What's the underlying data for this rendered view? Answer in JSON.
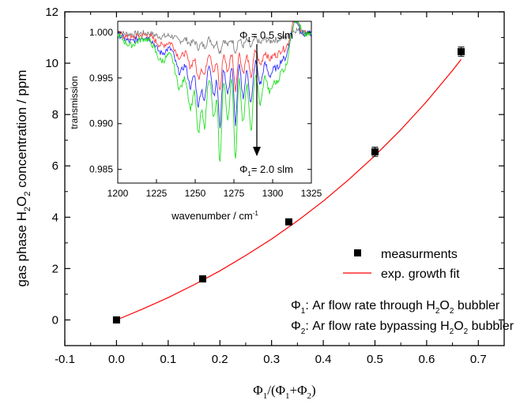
{
  "chart_data": [
    {
      "type": "scatter",
      "xlabel": {
        "main": "Φ",
        "sub1": "1",
        "mid": "/(Φ",
        "sub2": "1",
        "plus": "+Φ",
        "sub3": "2",
        "end": ")"
      },
      "ylabel": {
        "pre": "gas phase H",
        "sub1": "2",
        "mid": "O",
        "sub2": "2",
        "post": " concentration / ppm"
      },
      "xlim": [
        -0.1,
        0.75
      ],
      "ylim": [
        -1,
        12
      ],
      "xticks": [
        "-0.1",
        "0.0",
        "0.1",
        "0.2",
        "0.3",
        "0.4",
        "0.5",
        "0.6",
        "0.7"
      ],
      "xtick_values": [
        -0.1,
        0.0,
        0.1,
        0.2,
        0.3,
        0.4,
        0.5,
        0.6,
        0.7
      ],
      "yticks": [
        "0",
        "2",
        "4",
        "6",
        "8",
        "10",
        "12"
      ],
      "ytick_values": [
        0,
        2,
        4,
        6,
        8,
        10,
        12
      ],
      "series": [
        {
          "name": "measurments",
          "marker": "square",
          "color": "#000000",
          "x": [
            0.0,
            0.1667,
            0.3333,
            0.5,
            0.6667
          ],
          "y": [
            0.0,
            1.6,
            3.82,
            6.55,
            10.45
          ],
          "yerr": [
            0.05,
            0.08,
            0.1,
            0.18,
            0.18
          ]
        },
        {
          "name": "exp. growth fit",
          "type": "line",
          "color": "#ff0000",
          "x": [
            0.0,
            0.05,
            0.1,
            0.15,
            0.2,
            0.25,
            0.3,
            0.35,
            0.4,
            0.45,
            0.5,
            0.55,
            0.6,
            0.65,
            0.6667
          ],
          "y": [
            0.0,
            0.42,
            0.87,
            1.37,
            1.91,
            2.51,
            3.15,
            3.86,
            4.63,
            5.48,
            6.4,
            7.41,
            8.51,
            9.72,
            10.15
          ]
        }
      ],
      "annotations": [
        {
          "pre": "Φ",
          "sub": "1",
          "post": ": Ar flow rate through H",
          "s2": "2",
          "o": "O",
          "s3": "2",
          "end": " bubbler"
        },
        {
          "pre": "Φ",
          "sub": "2",
          "post": ": Ar flow rate bypassing H",
          "s2": "2",
          "o": "O",
          "s3": "2",
          "end": " bubbler"
        }
      ],
      "legend_position": "lower-right"
    },
    {
      "type": "line",
      "xlabel": "wavenumber / cm",
      "xlabel_sup": "-1",
      "ylabel": "transmission",
      "xlim": [
        1200,
        1325
      ],
      "ylim": [
        0.9835,
        1.0012
      ],
      "xticks": [
        "1200",
        "1225",
        "1250",
        "1275",
        "1300",
        "1325"
      ],
      "xtick_values": [
        1200,
        1225,
        1250,
        1275,
        1300,
        1325
      ],
      "yticks": [
        "0.985",
        "0.990",
        "0.995",
        "1.000"
      ],
      "ytick_values": [
        0.985,
        0.99,
        0.995,
        1.0
      ],
      "annotation_top": {
        "pre": "Φ",
        "sub": "1",
        "post": "= 0.5 slm"
      },
      "annotation_bottom": {
        "pre": "Φ",
        "sub": "1",
        "post": "= 2.0 slm"
      },
      "series": [
        {
          "color": "#808080",
          "depth": 0.15
        },
        {
          "color": "#ff4040",
          "depth": 0.45
        },
        {
          "color": "#3030ff",
          "depth": 0.72
        },
        {
          "color": "#20e020",
          "depth": 1.0
        }
      ]
    }
  ]
}
